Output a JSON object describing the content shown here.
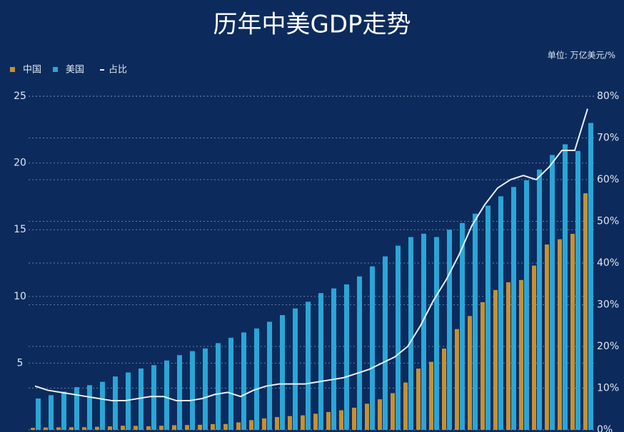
{
  "chart_data": {
    "type": "bar",
    "title": "历年中美GDP走势",
    "unit": "单位: 万亿美元/%",
    "series": [
      {
        "name": "中国",
        "color": "#c8902f",
        "values": [
          0.15,
          0.18,
          0.19,
          0.2,
          0.2,
          0.23,
          0.26,
          0.31,
          0.3,
          0.27,
          0.31,
          0.35,
          0.36,
          0.38,
          0.43,
          0.44,
          0.56,
          0.73,
          0.86,
          0.96,
          1.03,
          1.09,
          1.21,
          1.34,
          1.47,
          1.66,
          1.96,
          2.29,
          2.75,
          3.55,
          4.59,
          5.1,
          6.09,
          7.55,
          8.53,
          9.57,
          10.48,
          11.06,
          11.23,
          12.31,
          13.89,
          14.28,
          14.69,
          17.73
        ]
      },
      {
        "name": "美国",
        "color": "#2aa6d6",
        "values": [
          2.35,
          2.6,
          2.86,
          3.2,
          3.35,
          3.6,
          4.0,
          4.3,
          4.6,
          4.85,
          5.2,
          5.6,
          5.9,
          6.1,
          6.5,
          6.9,
          7.3,
          7.6,
          8.1,
          8.6,
          9.1,
          9.6,
          10.25,
          10.6,
          10.9,
          11.5,
          12.25,
          13.0,
          13.8,
          14.45,
          14.7,
          14.45,
          15.0,
          15.5,
          16.2,
          16.8,
          17.5,
          18.2,
          18.7,
          19.5,
          20.6,
          21.4,
          20.9,
          23.0
        ]
      },
      {
        "name": "占比",
        "type": "line",
        "axis": "y2",
        "color": "#e8eef5",
        "values": [
          10.5,
          9.5,
          9,
          8.5,
          8,
          7.5,
          7,
          7,
          7.5,
          8,
          8,
          7,
          7,
          7.5,
          8.5,
          9,
          8,
          9.5,
          10.5,
          11,
          11,
          11,
          11.5,
          12,
          12.5,
          13.5,
          14.5,
          16,
          17.5,
          20,
          25,
          31,
          36,
          42,
          49,
          54,
          58,
          60,
          61,
          60,
          63,
          67,
          67,
          77
        ]
      }
    ],
    "ylim": [
      0,
      25
    ],
    "yticks": [
      5,
      10,
      15,
      20,
      25
    ],
    "y2lim": [
      0,
      80
    ],
    "y2ticks": [
      {
        "value": 0,
        "label": "0%"
      },
      {
        "value": 10,
        "label": "10%"
      },
      {
        "value": 20,
        "label": "20%"
      },
      {
        "value": 30,
        "label": "30%"
      },
      {
        "value": 40,
        "label": "40%"
      },
      {
        "value": 50,
        "label": "50%"
      },
      {
        "value": 60,
        "label": "60%"
      },
      {
        "value": 70,
        "label": "70%"
      },
      {
        "value": 80,
        "label": "80%"
      }
    ],
    "grid": true
  }
}
